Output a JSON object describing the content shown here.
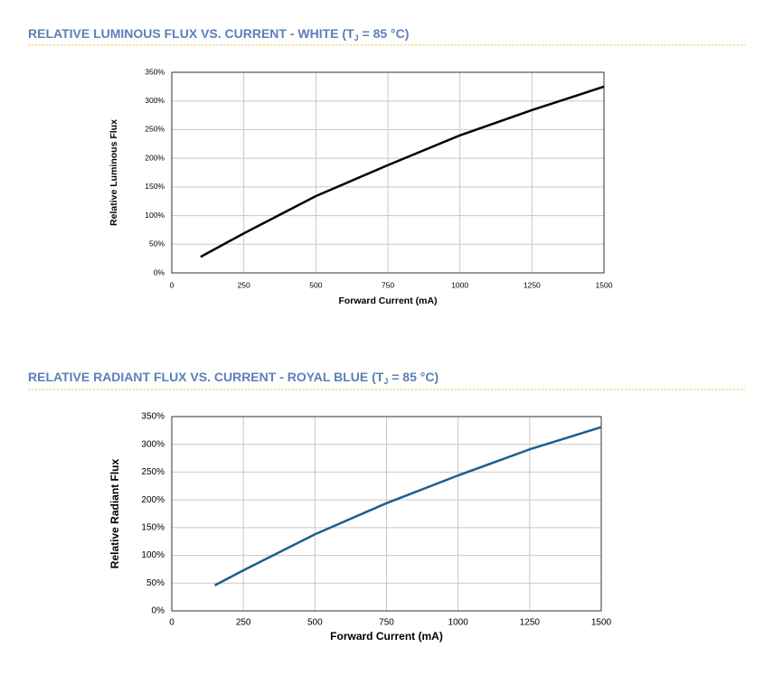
{
  "chart_data": [
    {
      "type": "line",
      "title": [
        "RELATIVE LUMINOUS FLUX VS. CURRENT - WHITE (T",
        "J",
        " = 85 °C)"
      ],
      "x_label": "Forward Current (mA)",
      "y_label": "Relative Luminous Flux",
      "x": [
        100,
        250,
        500,
        750,
        1000,
        1250,
        1500
      ],
      "series": [
        {
          "name": "White",
          "color": "#000000",
          "values": [
            28,
            69,
            134,
            188,
            240,
            284,
            325
          ]
        }
      ],
      "xlim": [
        0,
        1500
      ],
      "xticks": [
        0,
        250,
        500,
        750,
        1000,
        1250,
        1500
      ],
      "ylim": [
        0,
        350
      ],
      "yticks": [
        {
          "value": 0,
          "label": "0%"
        },
        {
          "value": 50,
          "label": "50%"
        },
        {
          "value": 100,
          "label": "100%"
        },
        {
          "value": 150,
          "label": "150%"
        },
        {
          "value": 200,
          "label": "200%"
        },
        {
          "value": 250,
          "label": "250%"
        },
        {
          "value": 300,
          "label": "300%"
        },
        {
          "value": 350,
          "label": "350%"
        }
      ],
      "grid": true
    },
    {
      "type": "line",
      "title": [
        "RELATIVE RADIANT FLUX VS. CURRENT - ROYAL BLUE (T",
        "J",
        " = 85 °C)"
      ],
      "x_label": "Forward Current (mA)",
      "y_label": "Relative Radiant Flux",
      "x": [
        150,
        250,
        500,
        750,
        1000,
        1250,
        1500
      ],
      "series": [
        {
          "name": "Royal Blue",
          "color": "#1d5e8c",
          "values": [
            46,
            73,
            138,
            194,
            244,
            291,
            331
          ]
        }
      ],
      "xlim": [
        0,
        1500
      ],
      "xticks": [
        0,
        250,
        500,
        750,
        1000,
        1250,
        1500
      ],
      "ylim": [
        0,
        350
      ],
      "yticks": [
        {
          "value": 0,
          "label": "0%"
        },
        {
          "value": 50,
          "label": "50%"
        },
        {
          "value": 100,
          "label": "100%"
        },
        {
          "value": 150,
          "label": "150%"
        },
        {
          "value": 200,
          "label": "200%"
        },
        {
          "value": 250,
          "label": "250%"
        },
        {
          "value": 300,
          "label": "300%"
        },
        {
          "value": 350,
          "label": "350%"
        }
      ],
      "grid": true
    }
  ]
}
